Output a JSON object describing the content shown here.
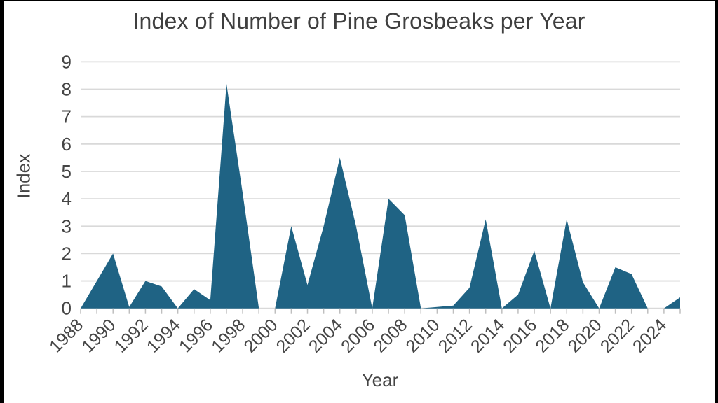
{
  "frame": {
    "note_edges": "black letterbox bars on left/right/top edges"
  },
  "chart_data": {
    "type": "area",
    "title": "Index of Number of Pine Grosbeaks per Year",
    "xlabel": "Year",
    "ylabel": "Index",
    "x": [
      1988,
      1989,
      1990,
      1991,
      1992,
      1993,
      1994,
      1995,
      1996,
      1997,
      1998,
      1999,
      2000,
      2001,
      2002,
      2003,
      2004,
      2005,
      2006,
      2007,
      2008,
      2009,
      2010,
      2011,
      2012,
      2013,
      2014,
      2015,
      2016,
      2017,
      2018,
      2019,
      2020,
      2021,
      2022,
      2023,
      2024,
      2025
    ],
    "values": [
      0,
      1.0,
      2.0,
      0.05,
      1.0,
      0.8,
      0,
      0.7,
      0.3,
      8.2,
      4.2,
      0,
      0,
      3.0,
      0.85,
      3.0,
      5.5,
      3.0,
      0,
      4.0,
      3.4,
      0,
      0.05,
      0.1,
      0.75,
      3.25,
      0,
      0.5,
      2.1,
      0,
      3.25,
      0.95,
      0,
      1.5,
      1.25,
      0,
      0,
      0.4
    ],
    "ylim": [
      0,
      9
    ],
    "ytick_labels": [
      "0",
      "1",
      "2",
      "3",
      "4",
      "5",
      "6",
      "7",
      "8",
      "9"
    ],
    "xtick_labels": [
      "1988",
      "1990",
      "1992",
      "1994",
      "1996",
      "1998",
      "2000",
      "2002",
      "2004",
      "2006",
      "2008",
      "2010",
      "2012",
      "2014",
      "2016",
      "2018",
      "2020",
      "2022",
      "2024"
    ],
    "grid": true,
    "legend": "none",
    "colors": {
      "area_fill": "#1f6384",
      "gridline": "#d9d9d9",
      "axis_line": "#d9d9d9",
      "tick_mark": "#bfbfbf",
      "tick_text": "#454545",
      "title_text": "#3f3f3f"
    }
  }
}
